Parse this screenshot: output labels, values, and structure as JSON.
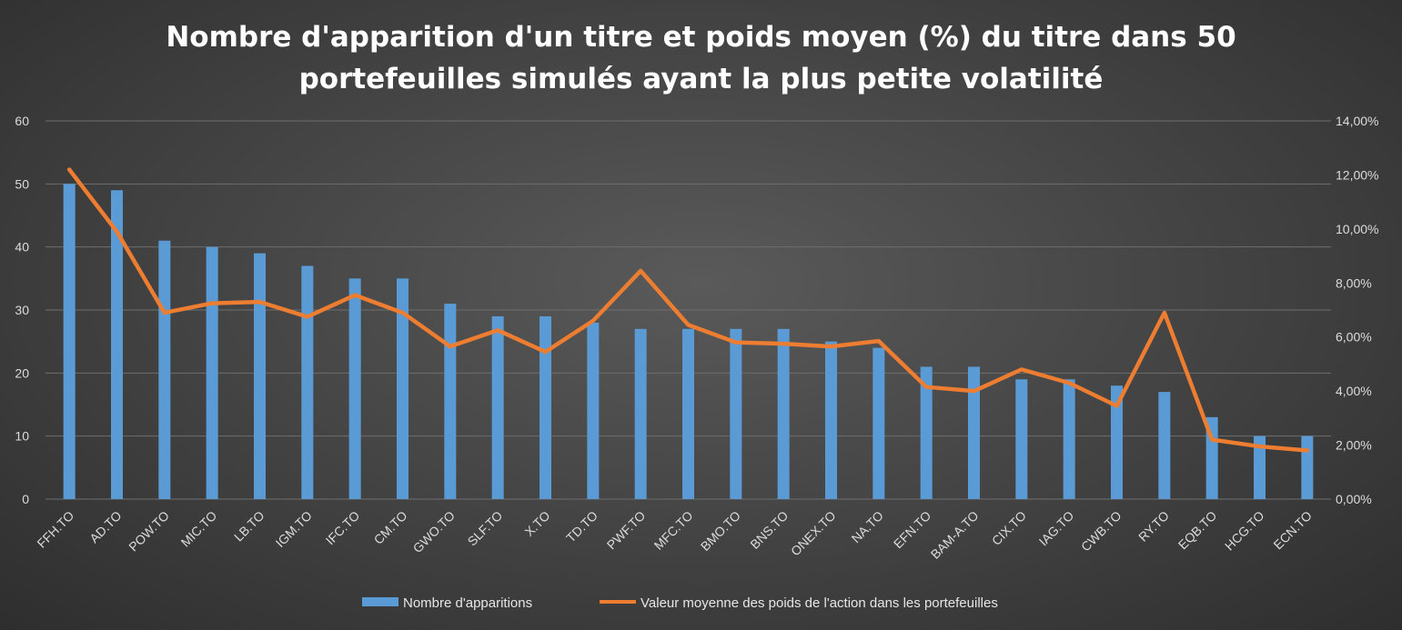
{
  "chart_data": {
    "type": "bar+line",
    "title_lines": [
      "Nombre d'apparition d'un titre et poids moyen (%) du titre dans 50",
      "portefeuilles simulés ayant la plus petite volatilité"
    ],
    "categories": [
      "FFH.TO",
      "AD.TO",
      "POW.TO",
      "MIC.TO",
      "LB.TO",
      "IGM.TO",
      "IFC.TO",
      "CM.TO",
      "GWO.TO",
      "SLF.TO",
      "X.TO",
      "TD.TO",
      "PWF.TO",
      "MFC.TO",
      "BMO.TO",
      "BNS.TO",
      "ONEX.TO",
      "NA.TO",
      "EFN.TO",
      "BAM-A.TO",
      "CIX.TO",
      "IAG.TO",
      "CWB.TO",
      "RY.TO",
      "EQB.TO",
      "HCG.TO",
      "ECN.TO"
    ],
    "series": [
      {
        "name": "Nombre d'apparitions",
        "type": "bar",
        "axis": "left",
        "color": "#5b9bd5",
        "values": [
          50,
          49,
          41,
          40,
          39,
          37,
          35,
          35,
          31,
          29,
          29,
          28,
          27,
          27,
          27,
          27,
          25,
          24,
          21,
          21,
          19,
          19,
          18,
          17,
          13,
          10,
          10
        ]
      },
      {
        "name": "Valeur moyenne des poids de l'action dans les portefeuilles",
        "type": "line",
        "axis": "right",
        "color": "#ed7d31",
        "values": [
          12.2,
          9.9,
          6.9,
          7.25,
          7.3,
          6.75,
          7.55,
          6.9,
          5.65,
          6.25,
          5.45,
          6.6,
          8.45,
          6.45,
          5.8,
          5.75,
          5.65,
          5.85,
          4.15,
          4.0,
          4.8,
          4.3,
          3.45,
          6.9,
          2.2,
          1.95,
          1.8
        ]
      }
    ],
    "y_left": {
      "min": 0,
      "max": 60,
      "step": 10,
      "ticks": [
        "0",
        "10",
        "20",
        "30",
        "40",
        "50",
        "60"
      ]
    },
    "y_right": {
      "min": 0,
      "max": 14,
      "step": 2,
      "ticks": [
        "0,00%",
        "2,00%",
        "4,00%",
        "6,00%",
        "8,00%",
        "10,00%",
        "12,00%",
        "14,00%"
      ]
    },
    "legend_position": "bottom",
    "grid": true
  }
}
